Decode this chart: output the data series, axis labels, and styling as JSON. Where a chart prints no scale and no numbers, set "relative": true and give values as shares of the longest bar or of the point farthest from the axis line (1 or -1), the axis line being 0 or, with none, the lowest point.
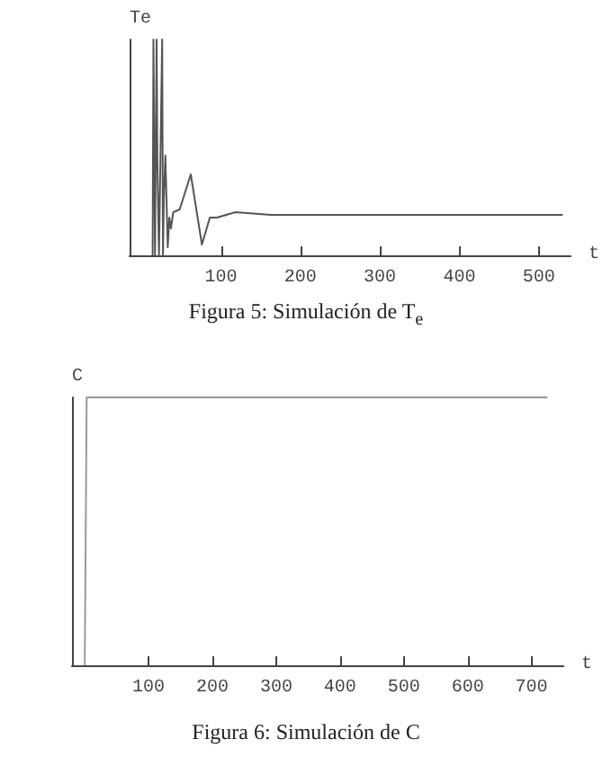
{
  "chart_data": [
    {
      "type": "line",
      "xlabel": "t",
      "ylabel": "Te",
      "xlim": [
        -15,
        540
      ],
      "xticks": [
        100,
        200,
        300,
        400,
        500
      ],
      "relative": true,
      "grid": false,
      "marker": "none",
      "annotations": [
        "Figura 5: Simulación de T$_{e}$"
      ],
      "x": [
        14,
        15,
        17,
        19,
        20,
        22,
        26,
        27,
        28,
        30,
        33,
        35,
        37,
        40,
        48,
        62,
        76,
        86,
        95,
        118,
        163,
        530
      ],
      "series": [
        {
          "color": "#555555",
          "values": [
            0,
            1,
            0,
            1,
            0.425,
            0,
            1,
            0,
            0.25,
            0.4625,
            0.0375,
            0.175,
            0.125,
            0.2,
            0.2125,
            0.375,
            0.05,
            0.175,
            0.175,
            0.2,
            0.1875,
            0.1875
          ]
        }
      ]
    },
    {
      "type": "line",
      "xlabel": "t",
      "ylabel": "C",
      "xlim": [
        -20,
        750
      ],
      "xticks": [
        100,
        200,
        300,
        400,
        500,
        600,
        700
      ],
      "relative": true,
      "grid": false,
      "marker": "none",
      "annotations": [
        "Figura 6: Simulación de C"
      ],
      "x": [
        0,
        3,
        725
      ],
      "series": [
        {
          "color": "#999999",
          "values": [
            0,
            1,
            1
          ]
        }
      ]
    }
  ]
}
